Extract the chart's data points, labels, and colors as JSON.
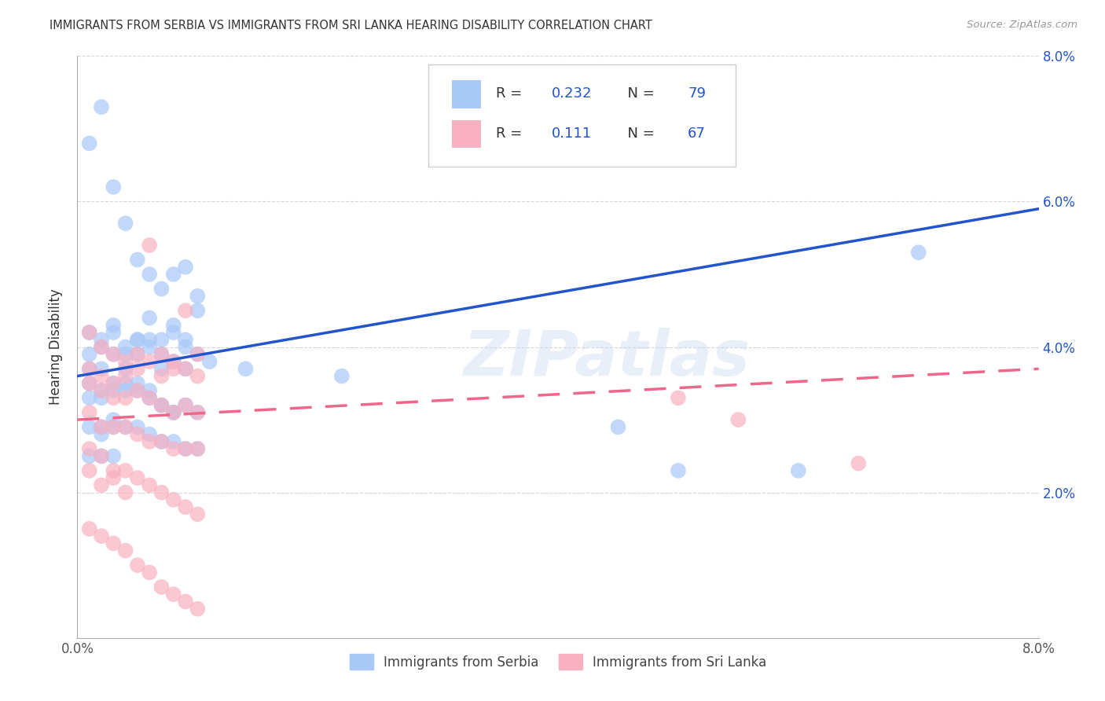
{
  "title": "IMMIGRANTS FROM SERBIA VS IMMIGRANTS FROM SRI LANKA HEARING DISABILITY CORRELATION CHART",
  "source": "Source: ZipAtlas.com",
  "ylabel": "Hearing Disability",
  "x_min": 0.0,
  "x_max": 0.08,
  "y_min": 0.0,
  "y_max": 0.08,
  "serbia_color": "#A8C8F8",
  "sri_lanka_color": "#F8B0C0",
  "serbia_line_color": "#2255CC",
  "sri_lanka_line_color": "#EE6688",
  "legend_r_serbia": "0.232",
  "legend_n_serbia": "79",
  "legend_r_sri_lanka": "0.111",
  "legend_n_sri_lanka": "67",
  "legend_value_color": "#2255CC",
  "watermark": "ZIPatlas",
  "background_color": "#FFFFFF",
  "grid_color": "#CCCCCC",
  "serbia_label": "Immigrants from Serbia",
  "sri_lanka_label": "Immigrants from Sri Lanka",
  "serbia_line_start_y": 0.036,
  "serbia_line_end_y": 0.059,
  "sri_lanka_line_start_y": 0.03,
  "sri_lanka_line_end_y": 0.037,
  "serbia_scatter_x": [
    0.001,
    0.002,
    0.003,
    0.004,
    0.005,
    0.006,
    0.007,
    0.008,
    0.009,
    0.01,
    0.001,
    0.002,
    0.003,
    0.004,
    0.005,
    0.006,
    0.007,
    0.008,
    0.009,
    0.01,
    0.001,
    0.002,
    0.003,
    0.004,
    0.005,
    0.006,
    0.007,
    0.008,
    0.009,
    0.01,
    0.001,
    0.002,
    0.003,
    0.004,
    0.005,
    0.006,
    0.007,
    0.008,
    0.009,
    0.01,
    0.001,
    0.002,
    0.003,
    0.004,
    0.005,
    0.006,
    0.007,
    0.008,
    0.002,
    0.003,
    0.001,
    0.002,
    0.003,
    0.004,
    0.005,
    0.006,
    0.007,
    0.008,
    0.009,
    0.01,
    0.001,
    0.002,
    0.003,
    0.011,
    0.014,
    0.022,
    0.045,
    0.05,
    0.06,
    0.07,
    0.001,
    0.002,
    0.003,
    0.004,
    0.005,
    0.006,
    0.007,
    0.008,
    0.009
  ],
  "serbia_scatter_y": [
    0.068,
    0.073,
    0.062,
    0.057,
    0.052,
    0.05,
    0.048,
    0.05,
    0.04,
    0.045,
    0.042,
    0.04,
    0.043,
    0.039,
    0.041,
    0.044,
    0.037,
    0.042,
    0.051,
    0.047,
    0.037,
    0.037,
    0.039,
    0.037,
    0.039,
    0.041,
    0.041,
    0.043,
    0.041,
    0.039,
    0.035,
    0.034,
    0.035,
    0.034,
    0.035,
    0.034,
    0.032,
    0.031,
    0.032,
    0.031,
    0.033,
    0.033,
    0.034,
    0.035,
    0.034,
    0.033,
    0.032,
    0.031,
    0.028,
    0.029,
    0.029,
    0.029,
    0.03,
    0.029,
    0.029,
    0.028,
    0.027,
    0.027,
    0.026,
    0.026,
    0.025,
    0.025,
    0.025,
    0.038,
    0.037,
    0.036,
    0.029,
    0.023,
    0.023,
    0.053,
    0.039,
    0.041,
    0.042,
    0.04,
    0.041,
    0.04,
    0.039,
    0.038,
    0.037
  ],
  "sri_lanka_scatter_x": [
    0.001,
    0.002,
    0.003,
    0.004,
    0.005,
    0.006,
    0.007,
    0.008,
    0.009,
    0.01,
    0.001,
    0.002,
    0.003,
    0.004,
    0.005,
    0.006,
    0.007,
    0.008,
    0.009,
    0.01,
    0.001,
    0.002,
    0.003,
    0.004,
    0.005,
    0.006,
    0.007,
    0.008,
    0.009,
    0.01,
    0.001,
    0.002,
    0.003,
    0.004,
    0.005,
    0.006,
    0.007,
    0.008,
    0.009,
    0.01,
    0.001,
    0.002,
    0.003,
    0.004,
    0.005,
    0.006,
    0.007,
    0.008,
    0.009,
    0.01,
    0.001,
    0.002,
    0.003,
    0.004,
    0.005,
    0.006,
    0.007,
    0.008,
    0.009,
    0.01,
    0.001,
    0.002,
    0.003,
    0.004,
    0.05,
    0.055,
    0.065
  ],
  "sri_lanka_scatter_y": [
    0.042,
    0.04,
    0.039,
    0.038,
    0.039,
    0.054,
    0.039,
    0.038,
    0.045,
    0.039,
    0.037,
    0.036,
    0.035,
    0.036,
    0.037,
    0.038,
    0.036,
    0.037,
    0.037,
    0.036,
    0.035,
    0.034,
    0.033,
    0.033,
    0.034,
    0.033,
    0.032,
    0.031,
    0.032,
    0.031,
    0.031,
    0.029,
    0.029,
    0.029,
    0.028,
    0.027,
    0.027,
    0.026,
    0.026,
    0.026,
    0.026,
    0.025,
    0.023,
    0.023,
    0.022,
    0.021,
    0.02,
    0.019,
    0.018,
    0.017,
    0.015,
    0.014,
    0.013,
    0.012,
    0.01,
    0.009,
    0.007,
    0.006,
    0.005,
    0.004,
    0.023,
    0.021,
    0.022,
    0.02,
    0.033,
    0.03,
    0.024
  ]
}
